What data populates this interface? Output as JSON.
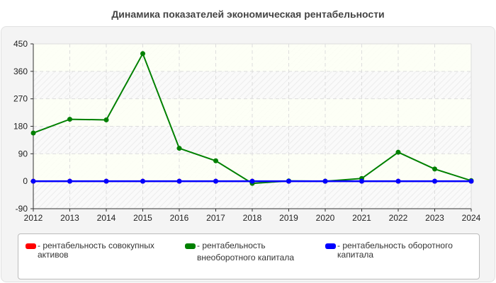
{
  "title": "Динамика показателей экономическая рентабельности",
  "chart_data": {
    "type": "line",
    "title": "Динамика показателей экономическая рентабельности",
    "xlabel": "",
    "ylabel": "",
    "x": [
      "2012",
      "2013",
      "2014",
      "2015",
      "2016",
      "2017",
      "2018",
      "2019",
      "2020",
      "2021",
      "2022",
      "2023",
      "2024"
    ],
    "yticks": [
      "450",
      "360",
      "270",
      "180",
      "90",
      "0",
      "-90"
    ],
    "ylim": [
      -90,
      450
    ],
    "grid": true,
    "legend_position": "bottom",
    "series": [
      {
        "name": "рентабельность совокупных активов",
        "color": "#ff0000",
        "values": [
          0,
          0,
          0,
          0,
          0,
          0,
          0,
          0,
          0,
          0,
          0,
          0,
          0
        ]
      },
      {
        "name": "рентабельность внеоборотного капитала",
        "color": "#008000",
        "values": [
          158,
          203,
          201,
          418,
          108,
          67,
          -7,
          1,
          0,
          9,
          95,
          40,
          2
        ]
      },
      {
        "name": "рентабельность оборотного капитала",
        "color": "#0000ff",
        "values": [
          0,
          0,
          0,
          0,
          0,
          0,
          0,
          0,
          0,
          0,
          0,
          0,
          0
        ]
      }
    ]
  },
  "legend": [
    {
      "label": "- рентабельность совокупных активов",
      "color": "#ff0000"
    },
    {
      "label": "- рентабельность внеоборотного капитала",
      "color": "#008000"
    },
    {
      "label": "- рентабельность оборотного капитала",
      "color": "#0000ff"
    }
  ]
}
